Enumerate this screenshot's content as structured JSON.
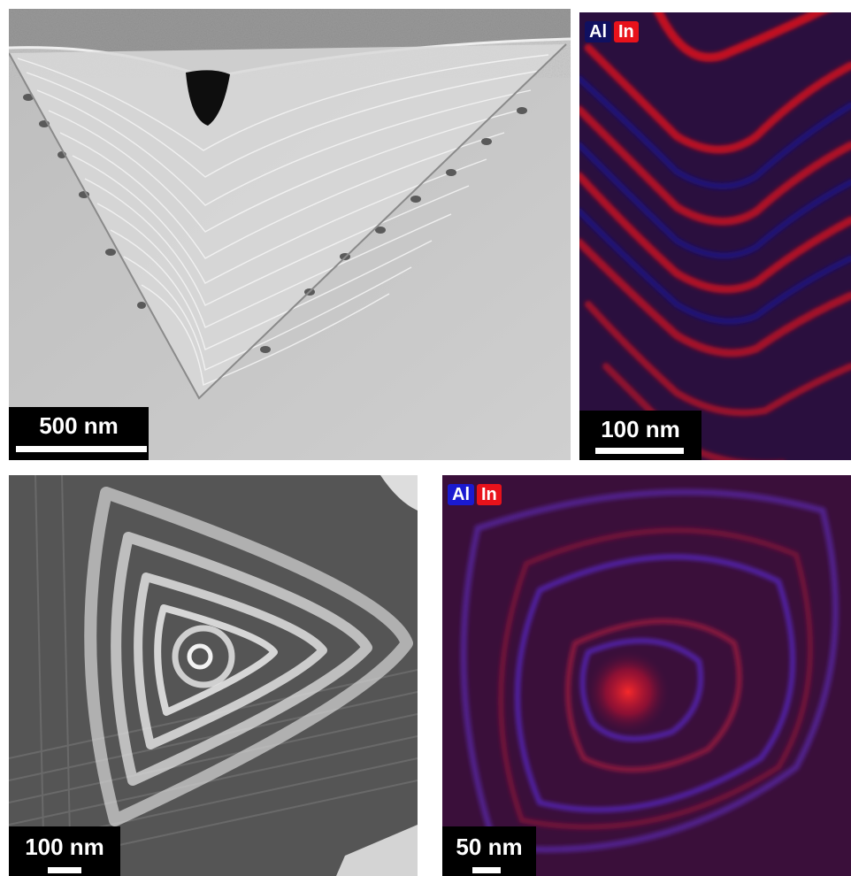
{
  "panels": {
    "tem_top": {
      "scale_label": "500 nm"
    },
    "eds_top": {
      "scale_label": "100 nm",
      "legend": {
        "al": "Al",
        "in": "In"
      }
    },
    "tem_bottom": {
      "scale_label": "100 nm"
    },
    "eds_bottom": {
      "scale_label": "50 nm",
      "legend": {
        "al": "Al",
        "in": "In"
      }
    }
  },
  "colors": {
    "al_channel": "#1a1aa8",
    "in_channel": "#e8121b",
    "eds_background": "#2a0f3e",
    "tem_background": "#c4c4c4"
  }
}
